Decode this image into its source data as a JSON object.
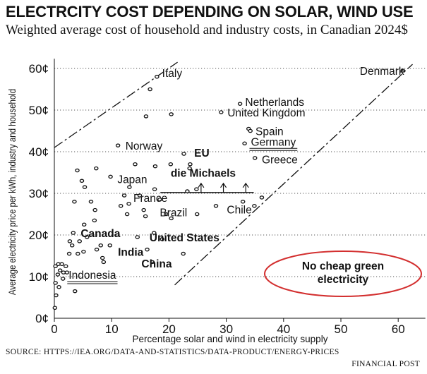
{
  "title": "ELECTRCITY COST DEPENDING ON SOLAR, WIND USE",
  "subtitle": "Weighted average cost of household and industry costs, in Canadian 2024$",
  "source": "SOURCE: HTTPS://IEA.ORG/DATA-AND-STATISTICS/DATA-PRODUCT/ENERGY-PRICES",
  "credit": "FINANCIAL POST",
  "chart_data": {
    "type": "scatter",
    "xlabel": "Percentage solar and wind in electricity supply",
    "ylabel": "Average electricity price per kWh, industry and household",
    "xlim": [
      0,
      64
    ],
    "ylim": [
      0,
      62
    ],
    "xticks": [
      0,
      10,
      20,
      30,
      40,
      50,
      60
    ],
    "xtick_labels": [
      "0",
      "10",
      "20",
      "30",
      "40",
      "50",
      "60"
    ],
    "yticks": [
      0,
      10,
      20,
      30,
      40,
      50,
      60
    ],
    "ytick_labels": [
      "0¢",
      "10¢",
      "20¢",
      "30¢",
      "40¢",
      "50¢",
      "60¢"
    ],
    "grid": "horizontal dotted",
    "points": [
      {
        "x": 0.1,
        "y": 2.5
      },
      {
        "x": 0.3,
        "y": 5.5
      },
      {
        "x": 0.2,
        "y": 8.5
      },
      {
        "x": 0.6,
        "y": 10.5
      },
      {
        "x": 0.2,
        "y": 12.5
      },
      {
        "x": 0.7,
        "y": 13.0
      },
      {
        "x": 1.3,
        "y": 13.0
      },
      {
        "x": 1.0,
        "y": 11.5
      },
      {
        "x": 1.6,
        "y": 11.0
      },
      {
        "x": 2.0,
        "y": 12.5
      },
      {
        "x": 2.2,
        "y": 11.0
      },
      {
        "x": 0.8,
        "y": 7.5
      },
      {
        "x": 1.5,
        "y": 9.5
      },
      {
        "x": 3.6,
        "y": 6.5
      },
      {
        "x": 2.6,
        "y": 15.5
      },
      {
        "x": 2.7,
        "y": 18.5
      },
      {
        "x": 3.1,
        "y": 17.5
      },
      {
        "x": 3.3,
        "y": 20.5
      },
      {
        "x": 4.1,
        "y": 15.5
      },
      {
        "x": 4.4,
        "y": 18.5
      },
      {
        "x": 5.1,
        "y": 16.0
      },
      {
        "x": 5.7,
        "y": 19.5
      },
      {
        "x": 5.2,
        "y": 22.5
      },
      {
        "x": 3.5,
        "y": 28.0
      },
      {
        "x": 4.8,
        "y": 33.0
      },
      {
        "x": 5.3,
        "y": 31.5
      },
      {
        "x": 4.0,
        "y": 35.5
      },
      {
        "x": 6.4,
        "y": 28.0
      },
      {
        "x": 7.0,
        "y": 23.5
      },
      {
        "x": 7.1,
        "y": 26.0
      },
      {
        "x": 7.3,
        "y": 36.0
      },
      {
        "x": 7.4,
        "y": 16.5
      },
      {
        "x": 8.1,
        "y": 17.5
      },
      {
        "x": 8.4,
        "y": 14.5
      },
      {
        "x": 8.6,
        "y": 13.5
      },
      {
        "x": 9.7,
        "y": 17.5
      },
      {
        "x": 9.8,
        "y": 34.0
      },
      {
        "x": 11.1,
        "y": 41.5
      },
      {
        "x": 11.6,
        "y": 27.0
      },
      {
        "x": 12.2,
        "y": 29.5
      },
      {
        "x": 12.7,
        "y": 25.0
      },
      {
        "x": 13.0,
        "y": 27.5
      },
      {
        "x": 13.1,
        "y": 31.5
      },
      {
        "x": 14.1,
        "y": 37.0
      },
      {
        "x": 14.5,
        "y": 19.5
      },
      {
        "x": 14.9,
        "y": 29.5
      },
      {
        "x": 15.6,
        "y": 26.0
      },
      {
        "x": 15.9,
        "y": 24.5
      },
      {
        "x": 16.0,
        "y": 48.5
      },
      {
        "x": 16.2,
        "y": 16.5
      },
      {
        "x": 16.7,
        "y": 55.0
      },
      {
        "x": 17.1,
        "y": 13.5
      },
      {
        "x": 17.4,
        "y": 20.5
      },
      {
        "x": 17.6,
        "y": 36.5
      },
      {
        "x": 17.5,
        "y": 31.0
      },
      {
        "x": 17.9,
        "y": 58.0
      },
      {
        "x": 18.4,
        "y": 28.5
      },
      {
        "x": 18.8,
        "y": 19.0
      },
      {
        "x": 19.5,
        "y": 25.0
      },
      {
        "x": 20.3,
        "y": 37.0
      },
      {
        "x": 20.4,
        "y": 24.0
      },
      {
        "x": 20.4,
        "y": 49.0
      },
      {
        "x": 22.6,
        "y": 39.5
      },
      {
        "x": 23.2,
        "y": 30.5
      },
      {
        "x": 23.6,
        "y": 36.0
      },
      {
        "x": 23.7,
        "y": 37.0
      },
      {
        "x": 24.8,
        "y": 31.0
      },
      {
        "x": 24.9,
        "y": 25.0
      },
      {
        "x": 22.5,
        "y": 15.5
      },
      {
        "x": 28.2,
        "y": 27.0
      },
      {
        "x": 29.1,
        "y": 49.5
      },
      {
        "x": 32.4,
        "y": 51.5
      },
      {
        "x": 32.9,
        "y": 28.0
      },
      {
        "x": 33.2,
        "y": 42.0
      },
      {
        "x": 33.9,
        "y": 45.5
      },
      {
        "x": 34.2,
        "y": 45.0
      },
      {
        "x": 34.9,
        "y": 27.0
      },
      {
        "x": 35.0,
        "y": 38.5
      },
      {
        "x": 36.2,
        "y": 29.0
      },
      {
        "x": 60.8,
        "y": 59.5
      }
    ],
    "point_labels": [
      {
        "text": "Italy",
        "x": 18.8,
        "y": 59.0,
        "bold": false
      },
      {
        "text": "Netherlands",
        "x": 33.3,
        "y": 52.0,
        "bold": false
      },
      {
        "text": "United Kingdom",
        "x": 30.2,
        "y": 49.5,
        "bold": false
      },
      {
        "text": "Spain",
        "x": 35.1,
        "y": 45.0,
        "bold": false
      },
      {
        "text": "Germany",
        "x": 34.3,
        "y": 42.5,
        "bold": false
      },
      {
        "text": "Greece",
        "x": 36.2,
        "y": 38.2,
        "bold": false
      },
      {
        "text": "Norway",
        "x": 12.4,
        "y": 41.5,
        "bold": false
      },
      {
        "text": "EU",
        "x": 24.4,
        "y": 39.8,
        "bold": true
      },
      {
        "text": "Japan",
        "x": 11.0,
        "y": 33.5,
        "bold": false
      },
      {
        "text": "die Michaels",
        "x": 20.3,
        "y": 35.0,
        "bold": true
      },
      {
        "text": "France",
        "x": 13.8,
        "y": 29.0,
        "bold": false
      },
      {
        "text": "Chile",
        "x": 30.1,
        "y": 26.2,
        "bold": false
      },
      {
        "text": "Brazil",
        "x": 18.4,
        "y": 25.5,
        "bold": false
      },
      {
        "text": "Canada",
        "x": 4.6,
        "y": 20.5,
        "bold": true
      },
      {
        "text": "United States",
        "x": 16.6,
        "y": 19.5,
        "bold": true
      },
      {
        "text": "India",
        "x": 11.1,
        "y": 16.0,
        "bold": true
      },
      {
        "text": "China",
        "x": 15.2,
        "y": 13.2,
        "bold": true
      },
      {
        "text": "Indonesia",
        "x": 2.5,
        "y": 10.5,
        "bold": false
      },
      {
        "text": "Denmark",
        "x": 53.3,
        "y": 59.5,
        "bold": false
      }
    ],
    "annotation": "No cheap green electricity"
  }
}
